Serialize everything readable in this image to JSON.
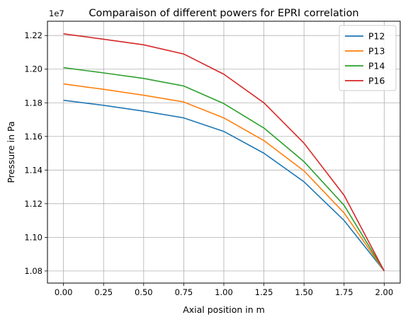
{
  "chart_data": {
    "type": "line",
    "title": "Comparaison of different powers for EPRI correlation",
    "xlabel": "Axial position in m",
    "ylabel": "Pressure in Pa",
    "y_offset_label": "1e7",
    "xlim": [
      -0.1,
      2.1
    ],
    "ylim": [
      1.0728,
      1.2285
    ],
    "xticks": [
      0.0,
      0.25,
      0.5,
      0.75,
      1.0,
      1.25,
      1.5,
      1.75,
      2.0
    ],
    "xtick_labels": [
      "0.00",
      "0.25",
      "0.50",
      "0.75",
      "1.00",
      "1.25",
      "1.50",
      "1.75",
      "2.00"
    ],
    "yticks": [
      1.08,
      1.1,
      1.12,
      1.14,
      1.16,
      1.18,
      1.2,
      1.22
    ],
    "ytick_labels": [
      "1.08",
      "1.10",
      "1.12",
      "1.14",
      "1.16",
      "1.18",
      "1.20",
      "1.22"
    ],
    "grid": true,
    "legend_position": "top-right",
    "x": [
      0.0,
      0.25,
      0.5,
      0.75,
      1.0,
      1.25,
      1.5,
      1.75,
      2.0
    ],
    "series": [
      {
        "name": "P12",
        "color": "#1f77b4",
        "values": [
          1.1815,
          1.1785,
          1.175,
          1.171,
          1.163,
          1.15,
          1.133,
          1.11,
          1.08
        ]
      },
      {
        "name": "P13",
        "color": "#ff7f0e",
        "values": [
          1.1912,
          1.188,
          1.1845,
          1.1805,
          1.171,
          1.1575,
          1.1395,
          1.1145,
          1.08
        ]
      },
      {
        "name": "P14",
        "color": "#2ca02c",
        "values": [
          1.2009,
          1.1978,
          1.1945,
          1.19,
          1.1795,
          1.165,
          1.145,
          1.119,
          1.08
        ]
      },
      {
        "name": "P16",
        "color": "#d62728",
        "values": [
          1.221,
          1.2178,
          1.2145,
          1.209,
          1.197,
          1.18,
          1.156,
          1.125,
          1.08
        ]
      }
    ]
  }
}
